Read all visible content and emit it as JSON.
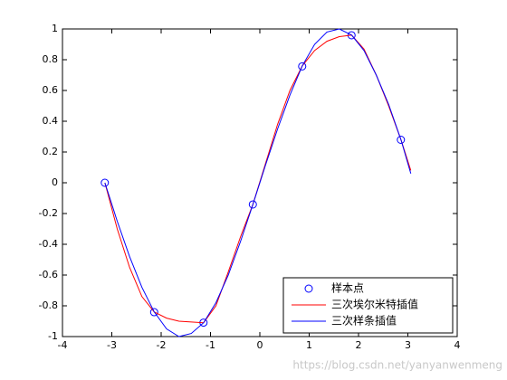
{
  "chart_data": {
    "type": "line",
    "xlim": [
      -4,
      4
    ],
    "ylim": [
      -1,
      1
    ],
    "xticks": [
      -4,
      -3,
      -2,
      -1,
      0,
      1,
      2,
      3,
      4
    ],
    "yticks": [
      -1,
      -0.8,
      -0.6,
      -0.4,
      -0.2,
      0,
      0.2,
      0.4,
      0.6,
      0.8,
      1
    ],
    "legend": "lower right",
    "series": [
      {
        "name": "样本点",
        "type": "scatter",
        "color": "#0000ff",
        "x": [
          -3.1416,
          -2.1416,
          -1.1416,
          -0.1416,
          0.8584,
          1.8584,
          2.8584
        ],
        "values": [
          0,
          -0.8415,
          -0.9093,
          -0.1411,
          0.7568,
          0.9589,
          0.2794
        ]
      },
      {
        "name": "三次埃尔米特插值",
        "color": "#ff0000",
        "x": [
          -3.14,
          -2.89,
          -2.64,
          -2.39,
          -2.14,
          -1.89,
          -1.64,
          -1.39,
          -1.14,
          -0.89,
          -0.64,
          -0.39,
          -0.14,
          0.11,
          0.36,
          0.61,
          0.86,
          1.11,
          1.36,
          1.61,
          1.86,
          2.11,
          2.36,
          2.61,
          2.86,
          3.06
        ],
        "values": [
          0,
          -0.3,
          -0.55,
          -0.74,
          -0.84,
          -0.88,
          -0.9,
          -0.905,
          -0.91,
          -0.8,
          -0.58,
          -0.35,
          -0.14,
          0.12,
          0.38,
          0.6,
          0.76,
          0.86,
          0.92,
          0.95,
          0.96,
          0.87,
          0.7,
          0.5,
          0.28,
          0.08
        ]
      },
      {
        "name": "三次样条插值",
        "color": "#0000ff",
        "x": [
          -3.14,
          -2.89,
          -2.64,
          -2.39,
          -2.14,
          -1.89,
          -1.64,
          -1.39,
          -1.14,
          -0.89,
          -0.64,
          -0.39,
          -0.14,
          0.11,
          0.36,
          0.61,
          0.86,
          1.11,
          1.36,
          1.61,
          1.86,
          2.11,
          2.36,
          2.61,
          2.86,
          3.06
        ],
        "values": [
          0,
          -0.25,
          -0.48,
          -0.68,
          -0.84,
          -0.95,
          -1.0,
          -0.98,
          -0.91,
          -0.78,
          -0.6,
          -0.38,
          -0.14,
          0.11,
          0.35,
          0.57,
          0.76,
          0.9,
          0.98,
          1.0,
          0.96,
          0.86,
          0.7,
          0.51,
          0.28,
          0.06
        ]
      }
    ]
  },
  "watermark": "https://blog.csdn.net/yanyanwenmeng"
}
